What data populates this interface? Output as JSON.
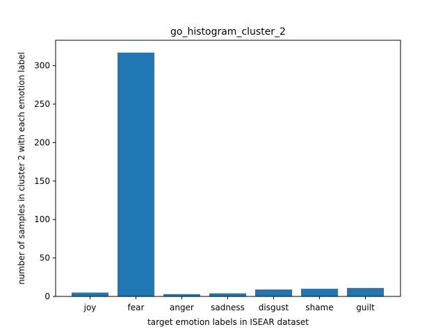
{
  "chart_data": {
    "type": "bar",
    "title": "go_histogram_cluster_2",
    "xlabel": "target emotion labels in ISEAR dataset",
    "ylabel": "number of samples in cluster 2 with each emotion label",
    "categories": [
      "joy",
      "fear",
      "anger",
      "sadness",
      "disgust",
      "shame",
      "guilt"
    ],
    "values": [
      5,
      317,
      3,
      4,
      9,
      10,
      11
    ],
    "ylim": [
      0,
      333
    ],
    "yticks": [
      0,
      50,
      100,
      150,
      200,
      250,
      300
    ],
    "grid": false,
    "legend": "none",
    "bar_color": "#1f77b4"
  }
}
